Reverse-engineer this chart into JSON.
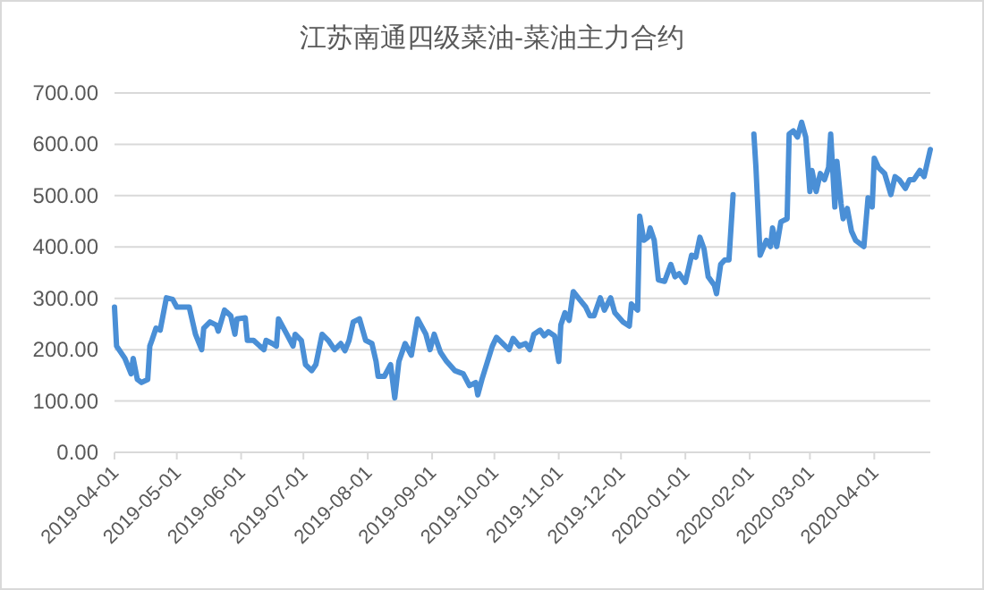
{
  "chart_data": {
    "type": "line",
    "title": "江苏南通四级菜油-菜油主力合约",
    "grid": "y",
    "line_style": "solid",
    "marker": "none",
    "x": [
      "2019-04-01",
      "2019-04-02",
      "2019-04-06",
      "2019-04-09",
      "2019-04-10",
      "2019-04-12",
      "2019-04-14",
      "2019-04-17",
      "2019-04-18",
      "2019-04-19",
      "2019-04-21",
      "2019-04-23",
      "2019-04-26",
      "2019-04-29",
      "2019-05-01",
      "2019-05-07",
      "2019-05-10",
      "2019-05-13",
      "2019-05-14",
      "2019-05-17",
      "2019-05-20",
      "2019-05-21",
      "2019-05-24",
      "2019-05-27",
      "2019-05-29",
      "2019-05-30",
      "2019-06-03",
      "2019-06-04",
      "2019-06-07",
      "2019-06-10",
      "2019-06-12",
      "2019-06-13",
      "2019-06-16",
      "2019-06-18",
      "2019-06-19",
      "2019-06-23",
      "2019-06-26",
      "2019-06-27",
      "2019-06-30",
      "2019-07-02",
      "2019-07-05",
      "2019-07-07",
      "2019-07-10",
      "2019-07-13",
      "2019-07-16",
      "2019-07-19",
      "2019-07-21",
      "2019-07-23",
      "2019-07-25",
      "2019-07-28",
      "2019-07-31",
      "2019-08-03",
      "2019-08-05",
      "2019-08-06",
      "2019-08-09",
      "2019-08-12",
      "2019-08-14",
      "2019-08-16",
      "2019-08-19",
      "2019-08-22",
      "2019-08-25",
      "2019-08-29",
      "2019-08-31",
      "2019-09-02",
      "2019-09-05",
      "2019-09-08",
      "2019-09-12",
      "2019-09-16",
      "2019-09-19",
      "2019-09-22",
      "2019-09-23",
      "2019-09-25",
      "2019-09-30",
      "2019-10-02",
      "2019-10-08",
      "2019-10-10",
      "2019-10-13",
      "2019-10-16",
      "2019-10-18",
      "2019-10-20",
      "2019-10-23",
      "2019-10-25",
      "2019-10-27",
      "2019-10-30",
      "2019-11-01",
      "2019-11-02",
      "2019-11-04",
      "2019-11-06",
      "2019-11-08",
      "2019-11-11",
      "2019-11-14",
      "2019-11-16",
      "2019-11-18",
      "2019-11-21",
      "2019-11-23",
      "2019-11-26",
      "2019-11-28",
      "2019-12-02",
      "2019-12-05",
      "2019-12-06",
      "2019-12-09",
      "2019-12-10",
      "2019-12-12",
      "2019-12-14",
      "2019-12-15",
      "2019-12-17",
      "2019-12-19",
      "2019-12-22",
      "2019-12-25",
      "2019-12-27",
      "2019-12-29",
      "2020-01-01",
      "2020-01-04",
      "2020-01-06",
      "2020-01-08",
      "2020-01-10",
      "2020-01-12",
      "2020-01-15",
      "2020-01-16",
      "2020-01-18",
      "2020-01-20",
      "2020-01-22",
      "2020-01-24",
      "2020-01-28",
      "2020-02-03",
      "2020-02-04",
      "2020-02-06",
      "2020-02-09",
      "2020-02-11",
      "2020-02-12",
      "2020-02-14",
      "2020-02-16",
      "2020-02-19",
      "2020-02-20",
      "2020-02-22",
      "2020-02-24",
      "2020-02-26",
      "2020-02-28",
      "2020-03-01",
      "2020-03-02",
      "2020-03-04",
      "2020-03-06",
      "2020-03-08",
      "2020-03-10",
      "2020-03-11",
      "2020-03-13",
      "2020-03-14",
      "2020-03-16",
      "2020-03-17",
      "2020-03-19",
      "2020-03-21",
      "2020-03-23",
      "2020-03-27",
      "2020-03-29",
      "2020-03-31",
      "2020-04-01",
      "2020-04-03",
      "2020-04-06",
      "2020-04-09",
      "2020-04-11",
      "2020-04-13",
      "2020-04-16",
      "2020-04-18",
      "2020-04-20",
      "2020-04-23",
      "2020-04-25",
      "2020-04-28"
    ],
    "series": [
      {
        "color": "#4a8fd6",
        "values": [
          283,
          207,
          183,
          153,
          183,
          142,
          136,
          142,
          207,
          218,
          242,
          238,
          301,
          298,
          283,
          283,
          230,
          200,
          242,
          254,
          248,
          236,
          277,
          266,
          230,
          260,
          262,
          218,
          218,
          207,
          200,
          218,
          212,
          207,
          260,
          230,
          207,
          230,
          218,
          171,
          159,
          171,
          230,
          218,
          200,
          212,
          198,
          218,
          254,
          260,
          218,
          212,
          177,
          148,
          148,
          171,
          106,
          177,
          212,
          189,
          260,
          230,
          200,
          230,
          195,
          177,
          159,
          153,
          130,
          136,
          112,
          142,
          207,
          224,
          200,
          222,
          207,
          212,
          200,
          230,
          238,
          227,
          235,
          227,
          177,
          248,
          272,
          257,
          313,
          298,
          283,
          266,
          266,
          301,
          277,
          301,
          272,
          254,
          246,
          289,
          277,
          460,
          413,
          419,
          437,
          413,
          336,
          333,
          366,
          342,
          348,
          331,
          384,
          380,
          419,
          396,
          342,
          325,
          309,
          366,
          375,
          375,
          502,
          null,
          620,
          555,
          384,
          413,
          401,
          437,
          401,
          449,
          455,
          620,
          626,
          614,
          643,
          614,
          508,
          549,
          508,
          543,
          531,
          555,
          620,
          478,
          567,
          484,
          455,
          475,
          431,
          413,
          401,
          496,
          478,
          573,
          555,
          543,
          502,
          537,
          531,
          514,
          531,
          531,
          549,
          537,
          590
        ]
      }
    ],
    "xlim": [
      "2019-04-01",
      "2020-04-28"
    ],
    "xticks": [
      "2019-04-01",
      "2019-05-01",
      "2019-06-01",
      "2019-07-01",
      "2019-08-01",
      "2019-09-01",
      "2019-10-01",
      "2019-11-01",
      "2019-12-01",
      "2020-01-01",
      "2020-02-01",
      "2020-03-01",
      "2020-04-01"
    ],
    "ylim": [
      0,
      700
    ],
    "yticks": [
      {
        "value": 0,
        "label": "0.00"
      },
      {
        "value": 100,
        "label": "100.00"
      },
      {
        "value": 200,
        "label": "200.00"
      },
      {
        "value": 300,
        "label": "300.00"
      },
      {
        "value": 400,
        "label": "400.00"
      },
      {
        "value": 500,
        "label": "500.00"
      },
      {
        "value": 600,
        "label": "600.00"
      },
      {
        "value": 700,
        "label": "700.00"
      }
    ]
  }
}
